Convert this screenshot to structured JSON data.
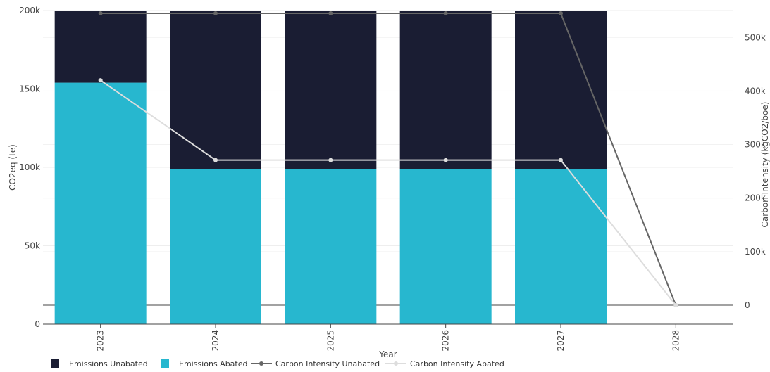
{
  "chart_data": {
    "type": "bar",
    "stacked": true,
    "categories": [
      "2023",
      "2024",
      "2025",
      "2026",
      "2027",
      "2028"
    ],
    "xlabel": "Year",
    "ylabel": "CO2eq (te)",
    "y2label": "Carbon Intensity (kgCO2/boe)",
    "ylim": [
      0,
      200000
    ],
    "y2lim": [
      -50000,
      550000
    ],
    "yticks": [
      0,
      50000,
      100000,
      150000,
      200000
    ],
    "ytick_labels": [
      "0",
      "50k",
      "100k",
      "150k",
      "200k"
    ],
    "y2ticks": [
      0,
      100000,
      200000,
      300000,
      400000,
      500000
    ],
    "y2tick_labels": [
      "0",
      "100k",
      "200k",
      "300k",
      "400k",
      "500k"
    ],
    "grid": true,
    "legend_position": "bottom",
    "series": [
      {
        "name": "Emissions Unabated",
        "kind": "bar",
        "axis": "y",
        "color": "#1a1d33",
        "values": [
          46000,
          101000,
          101000,
          101000,
          101000,
          0
        ]
      },
      {
        "name": "Emissions Abated",
        "kind": "bar",
        "axis": "y",
        "color": "#27b7cf",
        "values": [
          154000,
          99000,
          99000,
          99000,
          99000,
          0
        ]
      },
      {
        "name": "Carbon Intensity Unabated",
        "kind": "line",
        "axis": "y2",
        "color": "#666666",
        "values": [
          545000,
          545000,
          545000,
          545000,
          545000,
          0
        ]
      },
      {
        "name": "Carbon Intensity Abated",
        "kind": "line",
        "axis": "y2",
        "color": "#dddddd",
        "values": [
          420000,
          271000,
          271000,
          271000,
          271000,
          0
        ]
      }
    ]
  }
}
